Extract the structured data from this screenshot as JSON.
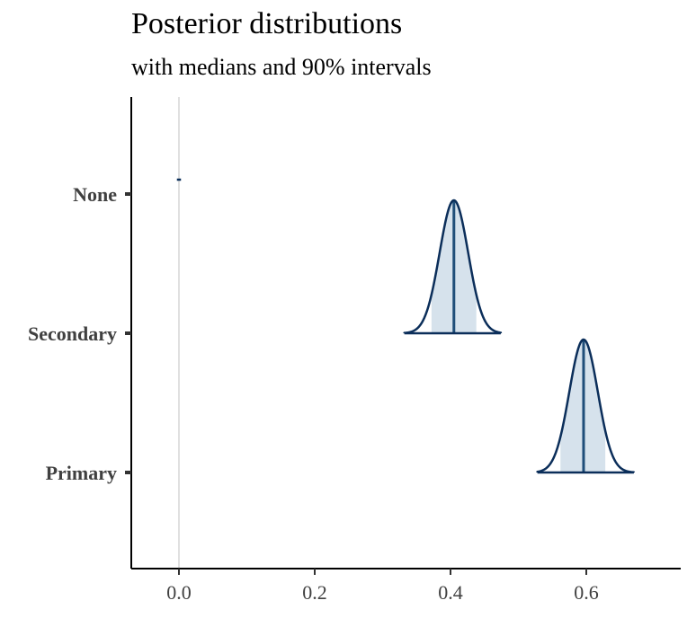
{
  "chart_data": {
    "type": "ridgeline",
    "title": "Posterior distributions",
    "subtitle": "with medians and 90% intervals",
    "xlabel": "",
    "ylabel": "",
    "xlim": [
      -0.07,
      0.74
    ],
    "x_ticks": [
      "0.0",
      "0.2",
      "0.4",
      "0.6"
    ],
    "x_tick_values": [
      0.0,
      0.2,
      0.4,
      0.6
    ],
    "reference_line_x": 0.0,
    "grid": false,
    "categories": [
      "None",
      "Secondary",
      "Primary"
    ],
    "series": [
      {
        "name": "None",
        "median": 0.0,
        "interval_90": [
          0.0,
          0.0
        ],
        "range": [
          -0.003,
          0.003
        ],
        "sd": 0.0
      },
      {
        "name": "Secondary",
        "median": 0.405,
        "interval_90": [
          0.372,
          0.438
        ],
        "range": [
          0.332,
          0.474
        ],
        "sd": 0.021
      },
      {
        "name": "Primary",
        "median": 0.596,
        "interval_90": [
          0.562,
          0.628
        ],
        "range": [
          0.528,
          0.67
        ],
        "sd": 0.021
      }
    ],
    "colors": {
      "outline": "#0b2e5a",
      "interval_fill": "#d6e2ec",
      "median_line": "#1f4e79",
      "reference_line": "#e0e0e0",
      "axis": "#000000"
    }
  }
}
